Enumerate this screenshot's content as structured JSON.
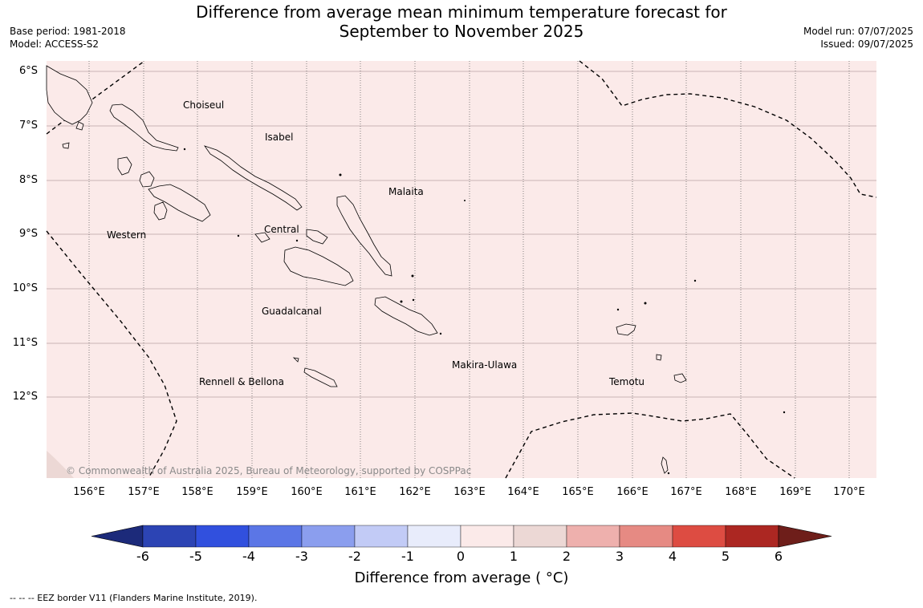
{
  "title": {
    "line1": "Difference from average mean minimum temperature forecast for",
    "line2": "September to November 2025"
  },
  "meta": {
    "base_period": "Base period: 1981-2018",
    "model": "Model: ACCESS-S2",
    "model_run": "Model run: 07/07/2025",
    "issued": "Issued: 09/07/2025"
  },
  "map": {
    "background_color": "#fbeae9",
    "latitude_labels": [
      "6°S",
      "7°S",
      "8°S",
      "9°S",
      "10°S",
      "11°S",
      "12°S"
    ],
    "longitude_labels": [
      "156°E",
      "157°E",
      "158°E",
      "159°E",
      "160°E",
      "161°E",
      "162°E",
      "163°E",
      "164°E",
      "165°E",
      "166°E",
      "167°E",
      "168°E",
      "169°E",
      "170°E"
    ],
    "province_labels": [
      "Choiseul",
      "Isabel",
      "Malaita",
      "Western",
      "Central",
      "Guadalcanal",
      "Makira-Ulawa",
      "Rennell & Bellona",
      "Temotu"
    ],
    "copyright": "© Commonwealth of Australia 2025, Bureau of Meteorology, supported by COSPPac"
  },
  "colorbar": {
    "ticks": [
      "-6",
      "-5",
      "-4",
      "-3",
      "-2",
      "-1",
      "0",
      "1",
      "2",
      "3",
      "4",
      "5",
      "6"
    ],
    "colors": [
      "#1c2a7a",
      "#2c44b4",
      "#3150de",
      "#5b76e6",
      "#8b9eee",
      "#c2cbf6",
      "#e8ecfb",
      "#fbeae9",
      "#ecd8d5",
      "#eeb0ad",
      "#e68a83",
      "#dd4c42",
      "#ac2722",
      "#6e1e1a"
    ],
    "label": "Difference from average ( °C)"
  },
  "footnote": "--  --  -- EEZ border V11 (Flanders Marine Institute, 2019)."
}
